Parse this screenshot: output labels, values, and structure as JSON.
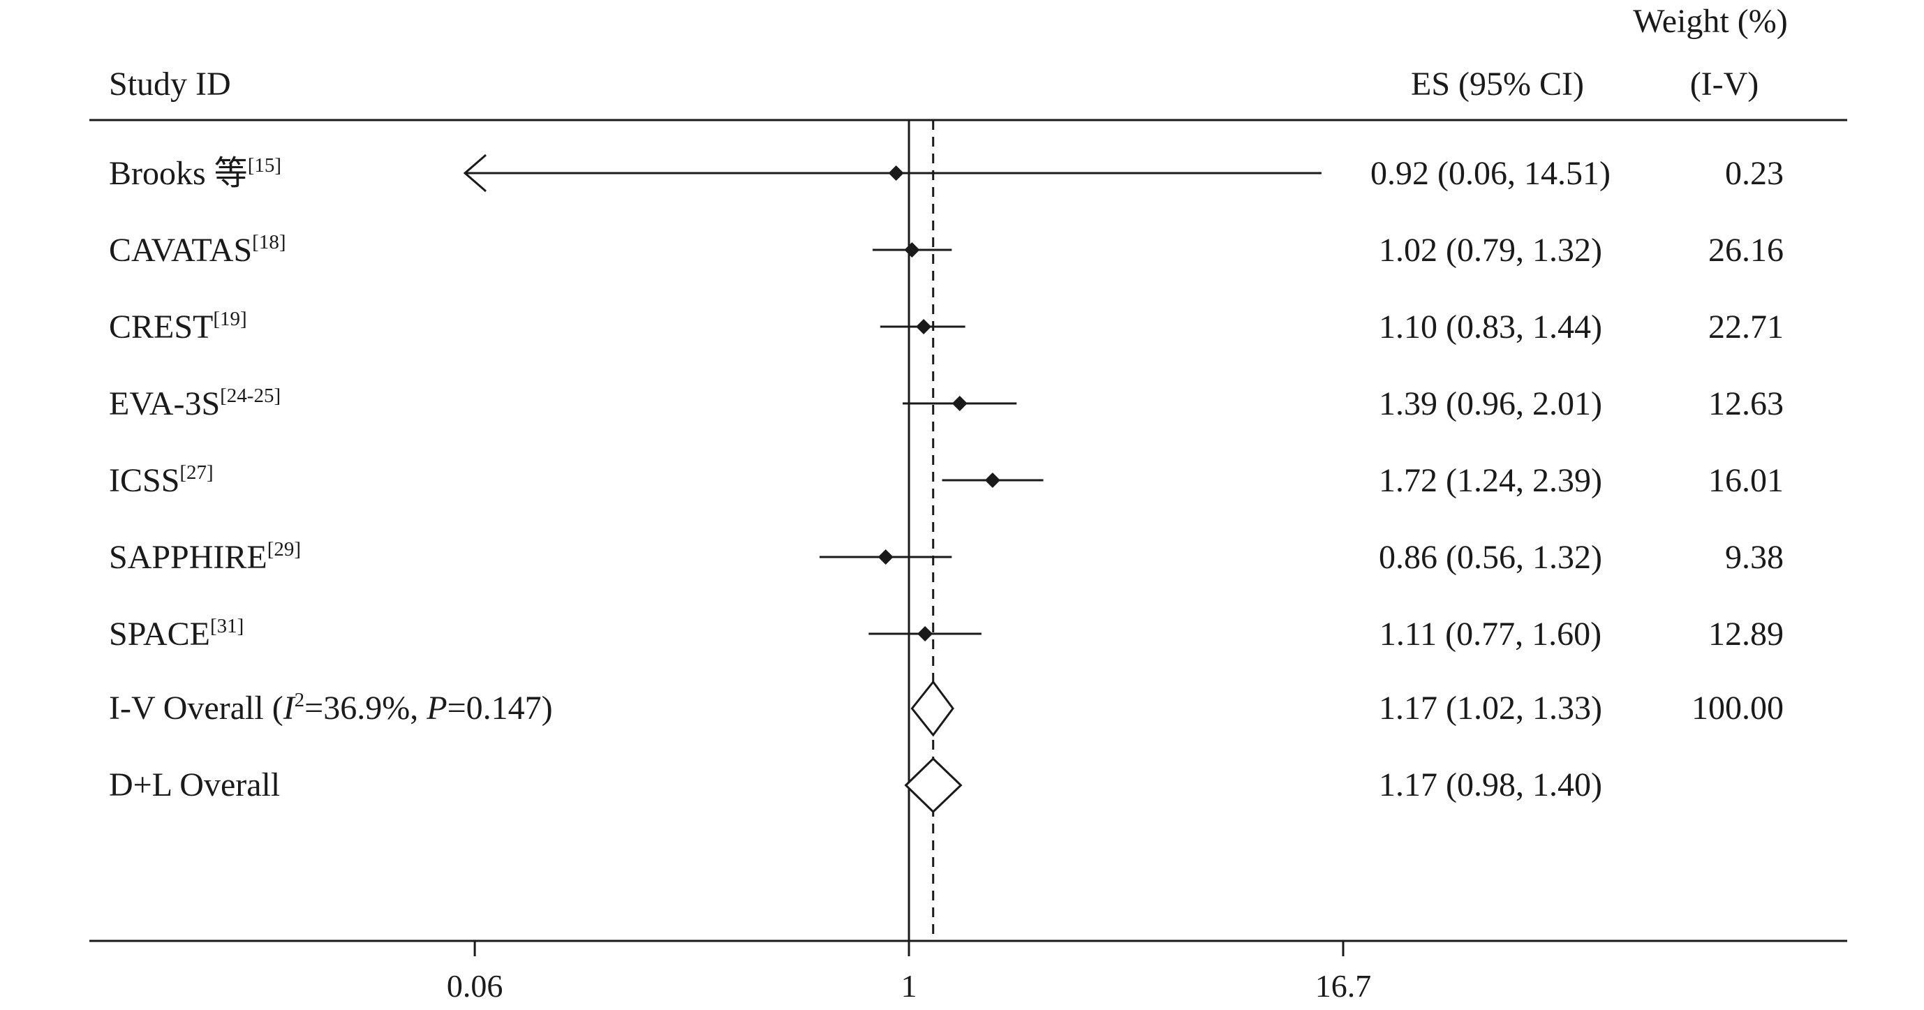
{
  "chart_data": {
    "type": "forest",
    "scale": "log",
    "xlim": [
      0.0562,
      16.7
    ],
    "ticks": [
      {
        "value": 0.0599,
        "label": "0.06"
      },
      {
        "value": 1,
        "label": "1"
      },
      {
        "value": 16.7,
        "label": "16.7"
      }
    ],
    "null_line": 1,
    "overall_line": 1.17,
    "headers": {
      "study": "Study ID",
      "es": "ES (95% CI)",
      "weight_line1": "Weight (%)",
      "weight_line2": "(I-V)"
    },
    "studies": [
      {
        "name": "Brooks 等",
        "ref": "[15]",
        "es": 0.92,
        "lo": 0.06,
        "hi": 14.51,
        "es_text": "0.92 (0.06, 14.51)",
        "weight": "0.23",
        "arrow_left": true
      },
      {
        "name": "CAVATAS",
        "ref": "[18]",
        "es": 1.02,
        "lo": 0.79,
        "hi": 1.32,
        "es_text": "1.02 (0.79, 1.32)",
        "weight": "26.16"
      },
      {
        "name": "CREST",
        "ref": "[19]",
        "es": 1.1,
        "lo": 0.83,
        "hi": 1.44,
        "es_text": "1.10 (0.83, 1.44)",
        "weight": "22.71"
      },
      {
        "name": "EVA-3S",
        "ref": "[24-25]",
        "es": 1.39,
        "lo": 0.96,
        "hi": 2.01,
        "es_text": "1.39 (0.96, 2.01)",
        "weight": "12.63"
      },
      {
        "name": "ICSS",
        "ref": "[27]",
        "es": 1.72,
        "lo": 1.24,
        "hi": 2.39,
        "es_text": "1.72 (1.24, 2.39)",
        "weight": "16.01"
      },
      {
        "name": "SAPPHIRE",
        "ref": "[29]",
        "es": 0.86,
        "lo": 0.56,
        "hi": 1.32,
        "es_text": "0.86 (0.56, 1.32)",
        "weight": "9.38"
      },
      {
        "name": "SPACE",
        "ref": "[31]",
        "es": 1.11,
        "lo": 0.77,
        "hi": 1.6,
        "es_text": "1.11 (0.77, 1.60)",
        "weight": "12.89"
      }
    ],
    "overall": [
      {
        "label_prefix": "I-V Overall  (",
        "i2_letter": "I",
        "i2_sup": "2",
        "i2_text": "=36.9%, ",
        "p_letter": "P",
        "p_text": "=0.147)",
        "es": 1.17,
        "lo": 1.02,
        "hi": 1.33,
        "es_text": "1.17 (1.02, 1.33)",
        "weight": "100.00"
      },
      {
        "label": "D+L Overall",
        "es": 1.17,
        "lo": 0.98,
        "hi": 1.4,
        "es_text": "1.17 (0.98, 1.40)",
        "weight": ""
      }
    ]
  }
}
